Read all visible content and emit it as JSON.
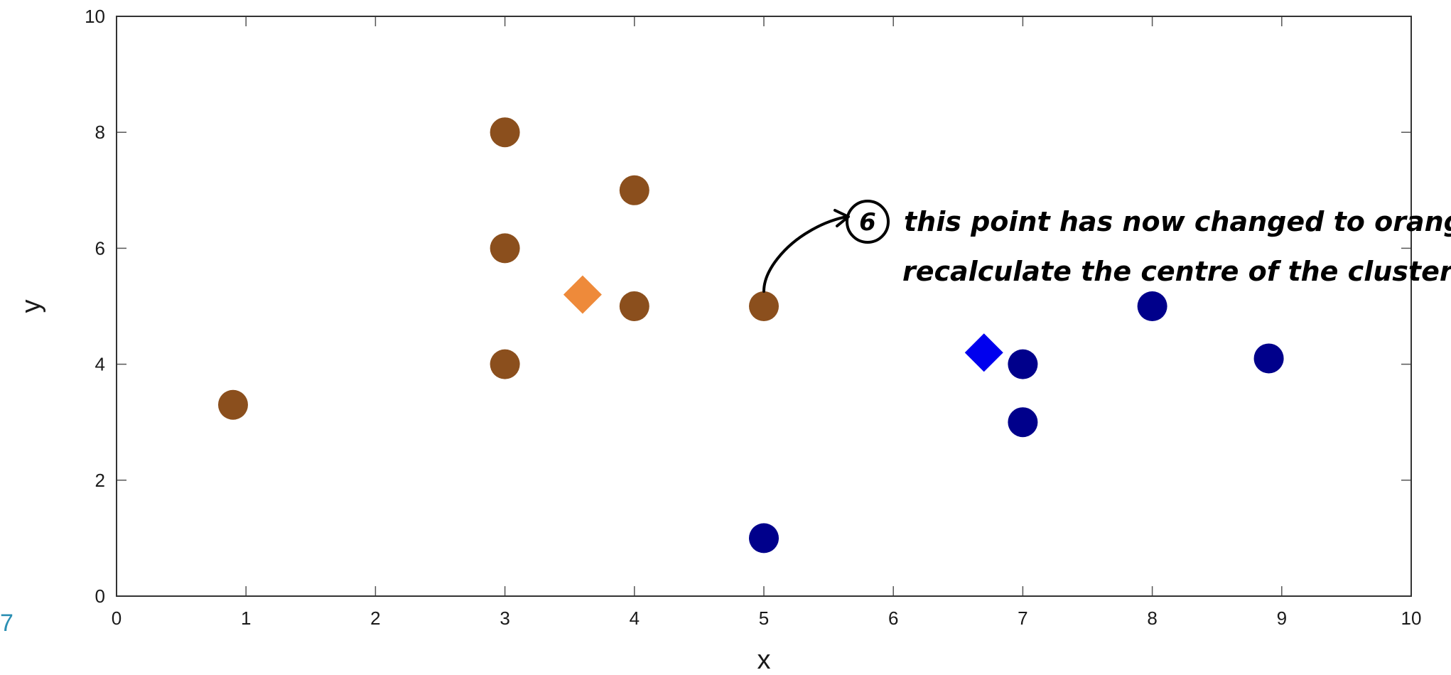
{
  "page_number": "7",
  "annotation": {
    "number": "6",
    "line1": "this point has now changed to orange,",
    "line2": "recalculate the centre of the cluster"
  },
  "chart_data": {
    "type": "scatter",
    "title": "",
    "xlabel": "x",
    "ylabel": "y",
    "xlim": [
      0,
      10
    ],
    "ylim": [
      0,
      10
    ],
    "xticks": [
      0,
      1,
      2,
      3,
      4,
      5,
      6,
      7,
      8,
      9,
      10
    ],
    "yticks": [
      0,
      2,
      4,
      6,
      8,
      10
    ],
    "grid": false,
    "series": [
      {
        "marker": "circle",
        "color": "#8b4f1d",
        "points": [
          [
            0.9,
            3.3
          ],
          [
            3,
            8
          ],
          [
            3,
            6
          ],
          [
            3,
            4
          ],
          [
            4,
            7
          ],
          [
            4,
            5
          ],
          [
            5,
            5
          ]
        ]
      },
      {
        "marker": "circle",
        "color": "#00008b",
        "points": [
          [
            5,
            1
          ],
          [
            7,
            4
          ],
          [
            7,
            3
          ],
          [
            8,
            5
          ],
          [
            8.9,
            4.1
          ]
        ]
      },
      {
        "marker": "diamond",
        "color": "#ee8a3a",
        "points": [
          [
            3.6,
            5.2
          ]
        ]
      },
      {
        "marker": "diamond",
        "color": "#0000ee",
        "points": [
          [
            6.7,
            4.2
          ]
        ]
      }
    ]
  }
}
